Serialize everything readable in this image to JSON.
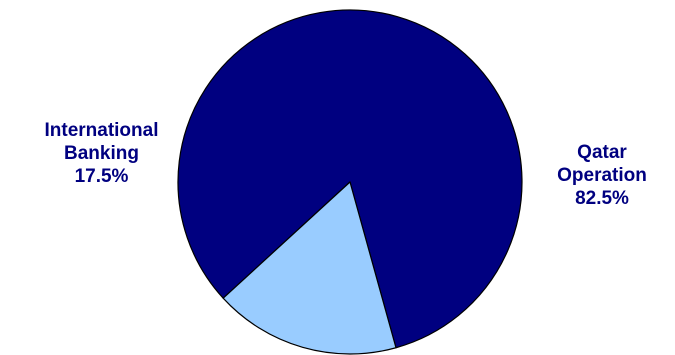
{
  "chart_data": {
    "type": "pie",
    "title": "",
    "slices": [
      {
        "name_lines": [
          "Qatar",
          "Operation"
        ],
        "percent_label": "82.5%",
        "value": 82.5,
        "color": "#000080"
      },
      {
        "name_lines": [
          "International",
          "Banking"
        ],
        "percent_label": "17.5%",
        "value": 17.5,
        "color": "#99CCFF"
      }
    ],
    "outline_color": "#000000",
    "legend": "none"
  }
}
